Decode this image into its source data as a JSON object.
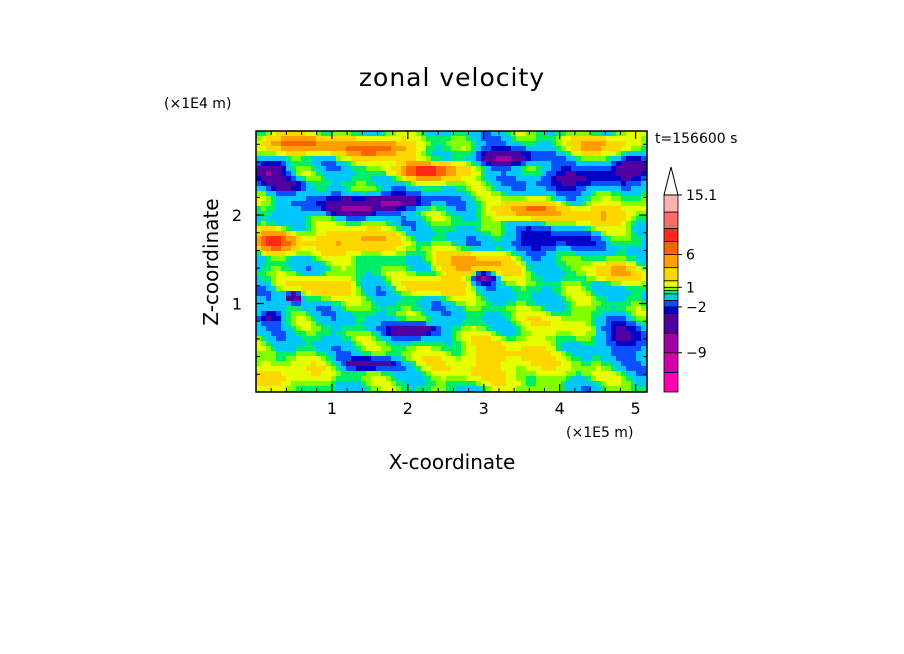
{
  "chart_data": {
    "type": "heatmap",
    "title": "zonal velocity",
    "xlabel": "X-coordinate",
    "ylabel": "Z-coordinate",
    "x_unit": "(×1E5 m)",
    "y_unit": "(×1E4 m)",
    "time_label": "t=156600 s",
    "xlim": [
      0,
      5.15
    ],
    "ylim": [
      0,
      2.95
    ],
    "x_ticks": [
      1,
      2,
      3,
      4,
      5
    ],
    "y_ticks": [
      1,
      2
    ],
    "colorbar": {
      "levels": [
        -15,
        -12,
        -9,
        -6,
        -3,
        -2,
        -1,
        0,
        0.5,
        1,
        2,
        4,
        6,
        8,
        10,
        12.5,
        15.1
      ],
      "tick_labels": [
        "15.1",
        "6",
        "1",
        "−2",
        "−9"
      ],
      "tick_values": [
        15.1,
        6,
        1,
        -2,
        -9
      ],
      "colors": [
        "#ff00b4",
        "#d600aa",
        "#a000a0",
        "#5000a0",
        "#0000c8",
        "#0a50ff",
        "#00c8ff",
        "#00ee66",
        "#7fff00",
        "#e6ff00",
        "#ffd700",
        "#ffa000",
        "#ff6400",
        "#ff2a1a",
        "#ff6a6a",
        "#ffb0b0"
      ],
      "extend_max": true
    },
    "features": [
      {
        "x": 0.15,
        "z": 2.5,
        "value": -6,
        "sx": 0.25,
        "sz": 0.1
      },
      {
        "x": 0.4,
        "z": 2.35,
        "value": -4,
        "sx": 0.28,
        "sz": 0.07
      },
      {
        "x": 0.95,
        "z": 2.1,
        "value": -3,
        "sx": 0.45,
        "sz": 0.1
      },
      {
        "x": 1.75,
        "z": 2.15,
        "value": -7,
        "sx": 0.45,
        "sz": 0.08
      },
      {
        "x": 1.35,
        "z": 2.05,
        "value": -5,
        "sx": 0.25,
        "sz": 0.07
      },
      {
        "x": 3.25,
        "z": 2.65,
        "value": -7,
        "sx": 0.35,
        "sz": 0.09
      },
      {
        "x": 4.2,
        "z": 2.4,
        "value": -4,
        "sx": 0.5,
        "sz": 0.12
      },
      {
        "x": 5.0,
        "z": 2.55,
        "value": -6,
        "sx": 0.22,
        "sz": 0.12
      },
      {
        "x": 3.8,
        "z": 1.7,
        "value": -3,
        "sx": 0.6,
        "sz": 0.15
      },
      {
        "x": 3.0,
        "z": 1.3,
        "value": -7,
        "sx": 0.14,
        "sz": 0.07
      },
      {
        "x": 0.5,
        "z": 1.08,
        "value": -6,
        "sx": 0.1,
        "sz": 0.07
      },
      {
        "x": 2.1,
        "z": 0.7,
        "value": -6,
        "sx": 0.3,
        "sz": 0.08
      },
      {
        "x": 1.5,
        "z": 0.32,
        "value": -6,
        "sx": 0.3,
        "sz": 0.06
      },
      {
        "x": 0.2,
        "z": 0.85,
        "value": -3,
        "sx": 0.18,
        "sz": 0.08
      },
      {
        "x": 4.8,
        "z": 0.6,
        "value": -3,
        "sx": 0.4,
        "sz": 0.18
      },
      {
        "x": 1.6,
        "z": 2.75,
        "value": 8,
        "sx": 0.45,
        "sz": 0.1
      },
      {
        "x": 2.3,
        "z": 2.5,
        "value": 9,
        "sx": 0.45,
        "sz": 0.1
      },
      {
        "x": 0.55,
        "z": 2.8,
        "value": 7,
        "sx": 0.55,
        "sz": 0.1
      },
      {
        "x": 0.25,
        "z": 1.7,
        "value": 8,
        "sx": 0.3,
        "sz": 0.12
      },
      {
        "x": 4.55,
        "z": 2.8,
        "value": 5,
        "sx": 0.4,
        "sz": 0.1
      },
      {
        "x": 3.6,
        "z": 2.05,
        "value": 6,
        "sx": 0.45,
        "sz": 0.1
      },
      {
        "x": 4.6,
        "z": 2.0,
        "value": 4,
        "sx": 0.5,
        "sz": 0.12
      },
      {
        "x": 2.9,
        "z": 1.45,
        "value": 5,
        "sx": 0.55,
        "sz": 0.14
      },
      {
        "x": 1.3,
        "z": 1.7,
        "value": 5,
        "sx": 0.55,
        "sz": 0.14
      },
      {
        "x": 2.4,
        "z": 1.2,
        "value": 4,
        "sx": 0.4,
        "sz": 0.1
      },
      {
        "x": 0.9,
        "z": 1.2,
        "value": 4,
        "sx": 0.4,
        "sz": 0.12
      },
      {
        "x": 3.2,
        "z": 0.35,
        "value": 2.5,
        "sx": 1.0,
        "sz": 0.28
      },
      {
        "x": 0.4,
        "z": 0.2,
        "value": 3,
        "sx": 0.5,
        "sz": 0.14
      },
      {
        "x": 4.0,
        "z": 0.8,
        "value": 1.5,
        "sx": 0.5,
        "sz": 0.2
      },
      {
        "x": 4.7,
        "z": 1.35,
        "value": 4,
        "sx": 0.35,
        "sz": 0.12
      }
    ]
  }
}
